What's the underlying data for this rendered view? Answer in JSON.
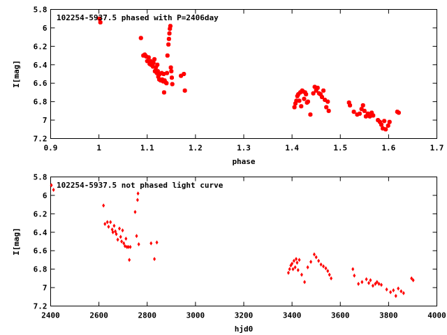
{
  "chart_data": [
    {
      "type": "scatter",
      "title": "102254-5937.5 phased with P=2406day",
      "xlabel": "phase",
      "ylabel": "I[mag]",
      "xlim": [
        0.9,
        1.7
      ],
      "ylim": [
        7.2,
        5.8
      ],
      "y_inverted": true,
      "grid": false,
      "xticks": [
        "0.9",
        "1",
        "1.1",
        "1.2",
        "1.3",
        "1.4",
        "1.5",
        "1.6",
        "1.7"
      ],
      "yticks": [
        "5.8",
        "6",
        "6.2",
        "6.4",
        "6.6",
        "6.8",
        "7",
        "7.2"
      ],
      "marker_color": "#ff0000",
      "series": [
        {
          "x": [
            1.001,
            1.003,
            1.087,
            1.092,
            1.095,
            1.098,
            1.1,
            1.103,
            1.105,
            1.107,
            1.108,
            1.11,
            1.112,
            1.113,
            1.115,
            1.116,
            1.118,
            1.12,
            1.121,
            1.122,
            1.123,
            1.125,
            1.126,
            1.128,
            1.13,
            1.131,
            1.133,
            1.134,
            1.135,
            1.136,
            1.138,
            1.14,
            1.141,
            1.142,
            1.144,
            1.145,
            1.146,
            1.147,
            1.148,
            1.149,
            1.15,
            1.151,
            1.152,
            1.17,
            1.176,
            1.178,
            1.405,
            1.407,
            1.409,
            1.411,
            1.413,
            1.415,
            1.417,
            1.419,
            1.421,
            1.423,
            1.425,
            1.427,
            1.429,
            1.431,
            1.433,
            1.438,
            1.444,
            1.447,
            1.45,
            1.453,
            1.456,
            1.459,
            1.462,
            1.465,
            1.468,
            1.471,
            1.474,
            1.476,
            1.518,
            1.52,
            1.528,
            1.535,
            1.54,
            1.544,
            1.547,
            1.55,
            1.553,
            1.557,
            1.561,
            1.565,
            1.568,
            1.578,
            1.582,
            1.585,
            1.588,
            1.591,
            1.594,
            1.599,
            1.602,
            1.618,
            1.621
          ],
          "y": [
            5.9,
            5.94,
            6.11,
            6.3,
            6.29,
            6.31,
            6.36,
            6.32,
            6.39,
            6.36,
            6.4,
            6.38,
            6.42,
            6.38,
            6.34,
            6.47,
            6.43,
            6.49,
            6.4,
            6.47,
            6.53,
            6.56,
            6.5,
            6.57,
            6.49,
            6.56,
            6.58,
            6.5,
            6.7,
            6.57,
            6.59,
            6.6,
            6.49,
            6.3,
            6.18,
            6.12,
            6.06,
            6.01,
            5.98,
            6.43,
            6.47,
            6.54,
            6.61,
            6.52,
            6.5,
            6.68,
            6.86,
            6.82,
            6.79,
            6.74,
            6.72,
            6.79,
            6.7,
            6.85,
            6.68,
            6.69,
            6.77,
            6.7,
            6.72,
            6.81,
            6.8,
            6.94,
            6.71,
            6.64,
            6.68,
            6.65,
            6.71,
            6.72,
            6.75,
            6.68,
            6.78,
            6.86,
            6.8,
            6.9,
            6.81,
            6.84,
            6.91,
            6.94,
            6.93,
            6.88,
            6.84,
            6.9,
            6.96,
            6.93,
            6.96,
            6.92,
            6.95,
            7.0,
            7.02,
            7.05,
            7.09,
            7.01,
            7.1,
            7.06,
            7.02,
            6.91,
            6.92
          ]
        }
      ]
    },
    {
      "type": "scatter",
      "title": "102254-5937.5 not phased light curve",
      "xlabel": "hjd0",
      "ylabel": "I[mag]",
      "xlim": [
        2400,
        4000
      ],
      "ylim": [
        7.2,
        5.8
      ],
      "y_inverted": true,
      "grid": false,
      "xticks": [
        "2400",
        "2600",
        "2800",
        "3000",
        "3200",
        "3400",
        "3600",
        "3800",
        "4000"
      ],
      "yticks": [
        "5.8",
        "6",
        "6.2",
        "6.4",
        "6.6",
        "6.8",
        "7",
        "7.2"
      ],
      "marker_color": "#ff0000",
      "series": [
        {
          "x": [
            2403,
            2412,
            2619,
            2625,
            2635,
            2640,
            2648,
            2655,
            2658,
            2663,
            2668,
            2672,
            2678,
            2685,
            2690,
            2694,
            2698,
            2703,
            2708,
            2712,
            2716,
            2722,
            2726,
            2730,
            2750,
            2756,
            2760,
            2762,
            2765,
            2816,
            2830,
            2840,
            3385,
            3390,
            3395,
            3400,
            3404,
            3408,
            3413,
            3417,
            3421,
            3425,
            3430,
            3440,
            3452,
            3465,
            3478,
            3492,
            3500,
            3510,
            3520,
            3530,
            3540,
            3548,
            3555,
            3562,
            3652,
            3658,
            3675,
            3690,
            3708,
            3718,
            3725,
            3735,
            3745,
            3752,
            3760,
            3770,
            3792,
            3808,
            3820,
            3830,
            3840,
            3852,
            3862,
            3895,
            3902
          ],
          "y": [
            5.89,
            5.94,
            6.11,
            6.31,
            6.29,
            6.34,
            6.29,
            6.37,
            6.4,
            6.33,
            6.39,
            6.42,
            6.48,
            6.36,
            6.45,
            6.5,
            6.38,
            6.52,
            6.55,
            6.47,
            6.56,
            6.56,
            6.7,
            6.56,
            6.18,
            6.44,
            6.05,
            5.98,
            6.53,
            6.52,
            6.69,
            6.51,
            6.84,
            6.8,
            6.76,
            6.74,
            6.8,
            6.71,
            6.78,
            6.69,
            6.73,
            6.81,
            6.7,
            6.86,
            6.94,
            6.78,
            6.72,
            6.64,
            6.67,
            6.71,
            6.75,
            6.77,
            6.79,
            6.82,
            6.86,
            6.9,
            6.8,
            6.87,
            6.96,
            6.94,
            6.91,
            6.95,
            6.92,
            6.98,
            6.96,
            6.94,
            6.96,
            6.97,
            7.02,
            7.05,
            7.03,
            7.09,
            7.01,
            7.04,
            7.06,
            6.9,
            6.92
          ]
        }
      ]
    }
  ]
}
